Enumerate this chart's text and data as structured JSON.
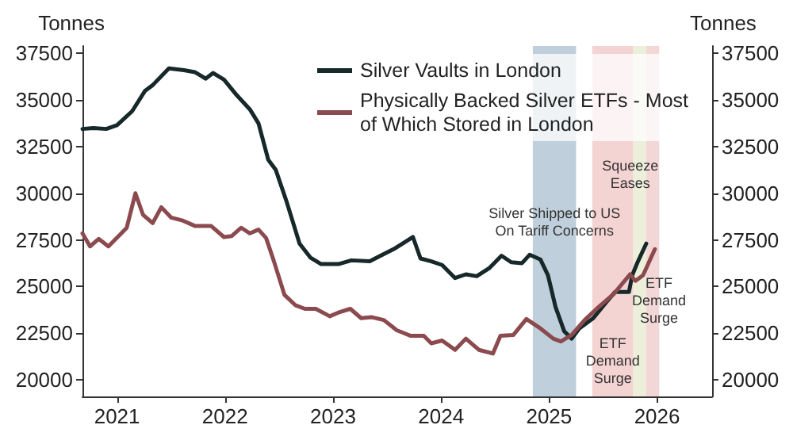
{
  "chart_data": {
    "type": "line",
    "ylabel": "Tonnes",
    "y2label": "Tonnes",
    "xlim": [
      2020.68,
      2026.51
    ],
    "xticks": [
      2021,
      2022,
      2023,
      2024,
      2025,
      2026
    ],
    "ylim": [
      19100,
      37900
    ],
    "yticks": [
      20000,
      22500,
      25000,
      27500,
      30000,
      32500,
      35000,
      37500
    ],
    "y2lim": [
      19100,
      37900
    ],
    "y2ticks": [
      20000,
      22500,
      25000,
      27500,
      30000,
      32500,
      35000,
      37500
    ],
    "legend": "top",
    "grid": false,
    "marker": "none",
    "line_style": "solid",
    "series": [
      {
        "name": "Silver Vaults in London",
        "color": "#17282a",
        "x": [
          2020.68,
          2020.78,
          2020.9,
          2021.0,
          2021.14,
          2021.26,
          2021.33,
          2021.48,
          2021.62,
          2021.72,
          2021.82,
          2021.89,
          2021.99,
          2022.11,
          2022.23,
          2022.31,
          2022.4,
          2022.47,
          2022.57,
          2022.69,
          2022.79,
          2022.89,
          2023.05,
          2023.17,
          2023.34,
          2023.44,
          2023.56,
          2023.74,
          2023.81,
          2023.91,
          2024.01,
          2024.13,
          2024.23,
          2024.33,
          2024.45,
          2024.56,
          2024.65,
          2024.75,
          2024.82,
          2024.92,
          2024.99,
          2025.06,
          2025.14,
          2025.21,
          2025.28,
          2025.41,
          2025.53,
          2025.61,
          2025.74,
          2025.77,
          2025.82,
          2025.9
        ],
        "values": [
          33450,
          33500,
          33450,
          33650,
          34400,
          35500,
          35800,
          36700,
          36600,
          36500,
          36150,
          36450,
          36100,
          35250,
          34500,
          33750,
          31800,
          31250,
          29550,
          27300,
          26550,
          26200,
          26200,
          26400,
          26350,
          26650,
          27000,
          27650,
          26500,
          26350,
          26150,
          25450,
          25650,
          25550,
          26000,
          26650,
          26300,
          26250,
          26700,
          26450,
          25600,
          23900,
          22600,
          22200,
          22750,
          23300,
          24150,
          24700,
          24700,
          25600,
          26300,
          27300
        ]
      },
      {
        "name": "Physically Backed Silver ETFs - Most of Which Stored in London",
        "color": "#8b4a4e",
        "x": [
          2020.68,
          2020.75,
          2020.83,
          2020.92,
          2021.04,
          2021.09,
          2021.17,
          2021.24,
          2021.33,
          2021.41,
          2021.5,
          2021.6,
          2021.72,
          2021.87,
          2021.99,
          2022.06,
          2022.15,
          2022.23,
          2022.31,
          2022.38,
          2022.45,
          2022.55,
          2022.65,
          2022.74,
          2022.84,
          2022.97,
          2023.05,
          2023.16,
          2023.26,
          2023.36,
          2023.47,
          2023.59,
          2023.72,
          2023.84,
          2023.91,
          2024.01,
          2024.13,
          2024.23,
          2024.35,
          2024.48,
          2024.55,
          2024.67,
          2024.79,
          2024.92,
          2025.04,
          2025.11,
          2025.21,
          2025.33,
          2025.46,
          2025.6,
          2025.75,
          2025.8,
          2025.87,
          2025.98
        ],
        "values": [
          27850,
          27150,
          27550,
          27150,
          27850,
          28150,
          30000,
          28850,
          28400,
          29250,
          28700,
          28550,
          28250,
          28250,
          27650,
          27700,
          28150,
          27850,
          28050,
          27600,
          26400,
          24550,
          24000,
          23800,
          23800,
          23400,
          23600,
          23800,
          23300,
          23350,
          23200,
          22650,
          22350,
          22350,
          21950,
          22100,
          21600,
          22200,
          21600,
          21400,
          22350,
          22400,
          23250,
          22750,
          22200,
          22050,
          22400,
          23200,
          23900,
          24600,
          25650,
          25300,
          25600,
          27000
        ]
      }
    ],
    "bands": [
      {
        "axis": "x",
        "from": 2024.85,
        "to": 2025.25,
        "label": "Silver Shipped to US\nOn Tariff Concerns",
        "color": "#a9bfd0"
      },
      {
        "axis": "x",
        "from": 2025.4,
        "to": 2025.78,
        "label": "ETF\nDemand\nSurge",
        "color": "#f0c4c4"
      },
      {
        "axis": "x",
        "from": 2025.78,
        "to": 2025.9,
        "label": "Squeeze\nEases",
        "color": "#e6ebcd"
      },
      {
        "axis": "x",
        "from": 2025.9,
        "to": 2026.02,
        "label": "ETF\nDemand\nSurge",
        "color": "#efcaca"
      }
    ]
  }
}
